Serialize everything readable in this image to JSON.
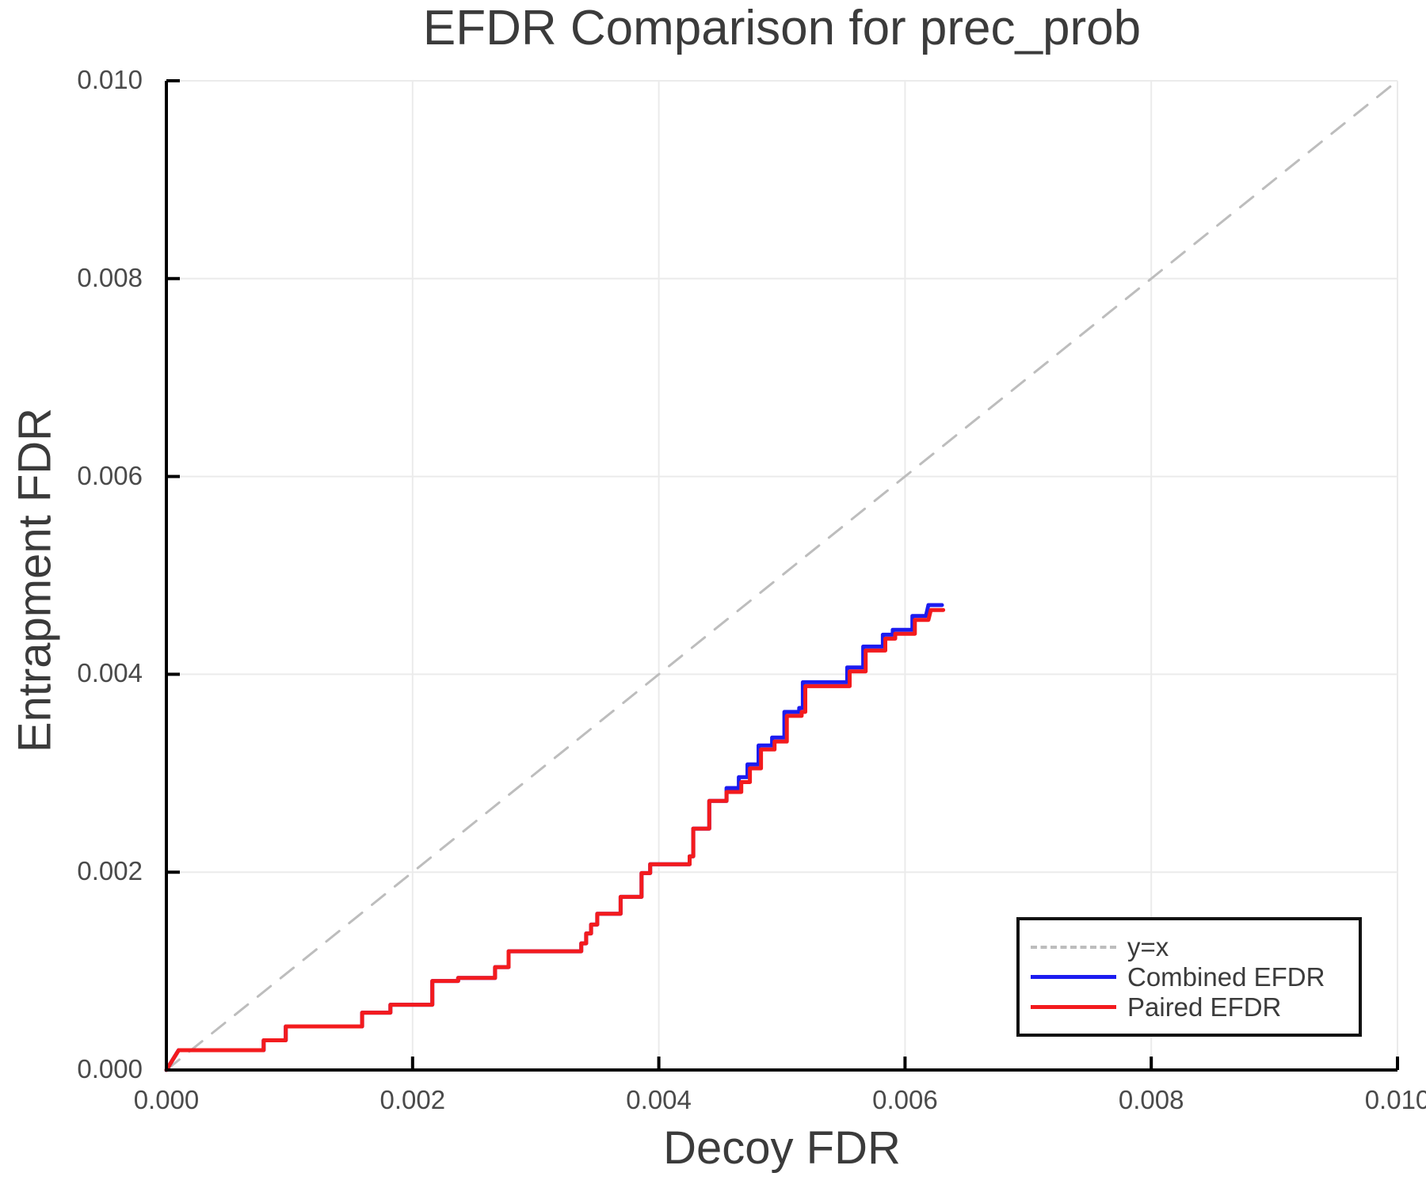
{
  "chart_data": {
    "type": "line",
    "title": "EFDR Comparison for prec_prob",
    "xlabel": "Decoy FDR",
    "ylabel": "Entrapment FDR",
    "xlim": [
      0.0,
      0.01
    ],
    "ylim": [
      0.0,
      0.01
    ],
    "grid": true,
    "legend_position": "lower right",
    "xticks": {
      "values": [
        0.0,
        0.002,
        0.004,
        0.006,
        0.008,
        0.01
      ],
      "labels": [
        "0.000",
        "0.002",
        "0.004",
        "0.006",
        "0.008",
        "0.010"
      ]
    },
    "yticks": {
      "values": [
        0.0,
        0.002,
        0.004,
        0.006,
        0.008,
        0.01
      ],
      "labels": [
        "0.000",
        "0.002",
        "0.004",
        "0.006",
        "0.008",
        "0.010"
      ]
    },
    "series": [
      {
        "name": "y=x",
        "color": "#bdbdbd",
        "dash": true,
        "width": 3,
        "points": [
          [
            0.0,
            0.0
          ],
          [
            0.01,
            0.01
          ]
        ]
      },
      {
        "name": "Combined EFDR",
        "color": "#1c1cf0",
        "dash": false,
        "width": 5,
        "points": [
          [
            0.0,
            0.0
          ],
          [
            0.0001,
            0.0002
          ],
          [
            0.00079,
            0.0002
          ],
          [
            0.00079,
            0.0003
          ],
          [
            0.00097,
            0.0003
          ],
          [
            0.00097,
            0.00044
          ],
          [
            0.00159,
            0.00044
          ],
          [
            0.00159,
            0.00058
          ],
          [
            0.00182,
            0.00058
          ],
          [
            0.00182,
            0.00066
          ],
          [
            0.00216,
            0.00066
          ],
          [
            0.00216,
            0.0009
          ],
          [
            0.00237,
            0.0009
          ],
          [
            0.00237,
            0.00093
          ],
          [
            0.00267,
            0.00093
          ],
          [
            0.00267,
            0.00104
          ],
          [
            0.00278,
            0.00104
          ],
          [
            0.00278,
            0.0012
          ],
          [
            0.00337,
            0.0012
          ],
          [
            0.00337,
            0.00128
          ],
          [
            0.00341,
            0.00128
          ],
          [
            0.00341,
            0.00138
          ],
          [
            0.00345,
            0.00138
          ],
          [
            0.00345,
            0.00147
          ],
          [
            0.0035,
            0.00147
          ],
          [
            0.0035,
            0.00158
          ],
          [
            0.00369,
            0.00158
          ],
          [
            0.00369,
            0.00175
          ],
          [
            0.00386,
            0.00175
          ],
          [
            0.00386,
            0.00199
          ],
          [
            0.00393,
            0.00199
          ],
          [
            0.00393,
            0.00208
          ],
          [
            0.00425,
            0.00208
          ],
          [
            0.00425,
            0.00216
          ],
          [
            0.00428,
            0.00216
          ],
          [
            0.00428,
            0.00244
          ],
          [
            0.00441,
            0.00244
          ],
          [
            0.00441,
            0.00272
          ],
          [
            0.00455,
            0.00272
          ],
          [
            0.00455,
            0.00285
          ],
          [
            0.00465,
            0.00285
          ],
          [
            0.00465,
            0.00296
          ],
          [
            0.00472,
            0.00296
          ],
          [
            0.00472,
            0.00309
          ],
          [
            0.00481,
            0.00309
          ],
          [
            0.00481,
            0.00328
          ],
          [
            0.00492,
            0.00328
          ],
          [
            0.00492,
            0.00336
          ],
          [
            0.00502,
            0.00336
          ],
          [
            0.00502,
            0.00362
          ],
          [
            0.00514,
            0.00362
          ],
          [
            0.00514,
            0.00366
          ],
          [
            0.00517,
            0.00366
          ],
          [
            0.00517,
            0.00392
          ],
          [
            0.00553,
            0.00392
          ],
          [
            0.00553,
            0.00407
          ],
          [
            0.00566,
            0.00407
          ],
          [
            0.00566,
            0.00428
          ],
          [
            0.00582,
            0.00428
          ],
          [
            0.00582,
            0.0044
          ],
          [
            0.0059,
            0.0044
          ],
          [
            0.0059,
            0.00445
          ],
          [
            0.00606,
            0.00445
          ],
          [
            0.00606,
            0.00459
          ],
          [
            0.00617,
            0.00459
          ],
          [
            0.00619,
            0.0047
          ],
          [
            0.0063,
            0.0047
          ]
        ]
      },
      {
        "name": "Paired EFDR",
        "color": "#f31b1e",
        "dash": false,
        "width": 5,
        "points": [
          [
            0.0,
            0.0
          ],
          [
            0.0001,
            0.0002
          ],
          [
            0.00079,
            0.0002
          ],
          [
            0.00079,
            0.0003
          ],
          [
            0.00097,
            0.0003
          ],
          [
            0.00097,
            0.00044
          ],
          [
            0.00159,
            0.00044
          ],
          [
            0.00159,
            0.00058
          ],
          [
            0.00182,
            0.00058
          ],
          [
            0.00182,
            0.00066
          ],
          [
            0.00216,
            0.00066
          ],
          [
            0.00216,
            0.0009
          ],
          [
            0.00237,
            0.0009
          ],
          [
            0.00237,
            0.00093
          ],
          [
            0.00267,
            0.00093
          ],
          [
            0.00267,
            0.00104
          ],
          [
            0.00278,
            0.00104
          ],
          [
            0.00278,
            0.0012
          ],
          [
            0.00337,
            0.0012
          ],
          [
            0.00337,
            0.00128
          ],
          [
            0.00341,
            0.00128
          ],
          [
            0.00341,
            0.00138
          ],
          [
            0.00345,
            0.00138
          ],
          [
            0.00345,
            0.00147
          ],
          [
            0.0035,
            0.00147
          ],
          [
            0.0035,
            0.00158
          ],
          [
            0.00369,
            0.00158
          ],
          [
            0.00369,
            0.00175
          ],
          [
            0.00386,
            0.00175
          ],
          [
            0.00386,
            0.00199
          ],
          [
            0.00393,
            0.00199
          ],
          [
            0.00393,
            0.00208
          ],
          [
            0.00425,
            0.00208
          ],
          [
            0.00425,
            0.00216
          ],
          [
            0.00428,
            0.00216
          ],
          [
            0.00428,
            0.00244
          ],
          [
            0.00441,
            0.00244
          ],
          [
            0.00441,
            0.00272
          ],
          [
            0.00455,
            0.00272
          ],
          [
            0.00455,
            0.00281
          ],
          [
            0.00467,
            0.00281
          ],
          [
            0.00467,
            0.00291
          ],
          [
            0.00474,
            0.00291
          ],
          [
            0.00474,
            0.00305
          ],
          [
            0.00483,
            0.00305
          ],
          [
            0.00483,
            0.00324
          ],
          [
            0.00494,
            0.00324
          ],
          [
            0.00494,
            0.00332
          ],
          [
            0.00504,
            0.00332
          ],
          [
            0.00504,
            0.00358
          ],
          [
            0.00516,
            0.00358
          ],
          [
            0.00516,
            0.00362
          ],
          [
            0.00519,
            0.00362
          ],
          [
            0.00519,
            0.00388
          ],
          [
            0.00555,
            0.00388
          ],
          [
            0.00555,
            0.00403
          ],
          [
            0.00568,
            0.00403
          ],
          [
            0.00568,
            0.00424
          ],
          [
            0.00584,
            0.00424
          ],
          [
            0.00584,
            0.00436
          ],
          [
            0.00592,
            0.00436
          ],
          [
            0.00592,
            0.00441
          ],
          [
            0.00608,
            0.00441
          ],
          [
            0.00608,
            0.00455
          ],
          [
            0.00619,
            0.00455
          ],
          [
            0.00621,
            0.00465
          ],
          [
            0.00631,
            0.00465
          ]
        ]
      }
    ]
  },
  "colors": {
    "background": "#ffffff",
    "grid": "#ebebeb",
    "spine": "#000000",
    "title_text": "#3b3b3b",
    "tick_text": "#4a4a4a",
    "identity": "#bdbdbd",
    "combined": "#1c1cf0",
    "paired": "#f31b1e"
  }
}
